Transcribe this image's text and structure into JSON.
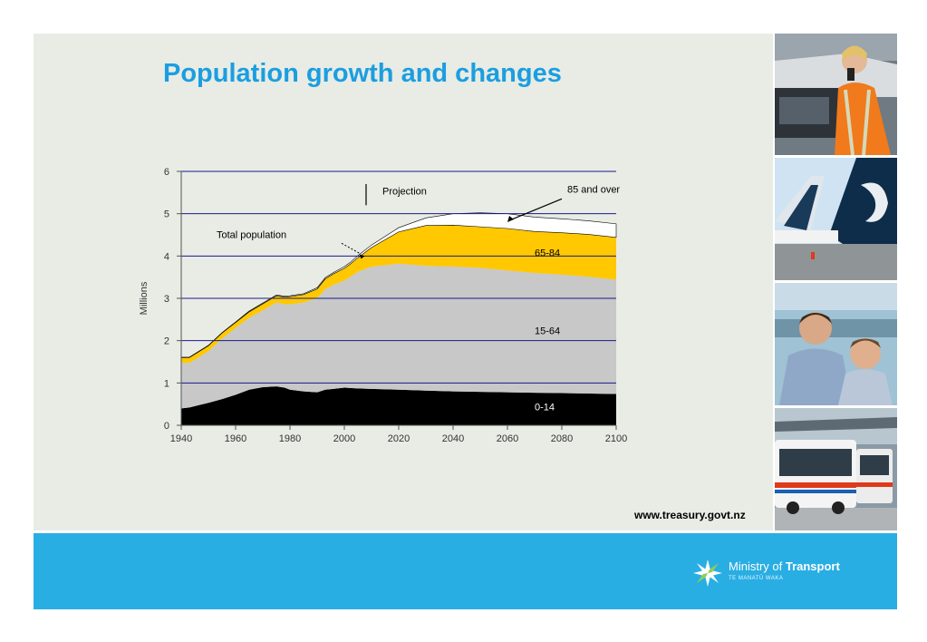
{
  "slide": {
    "title": "Population growth and changes",
    "url": "www.treasury.govt.nz"
  },
  "logo": {
    "name_light": "Ministry of ",
    "name_bold": "Transport",
    "subtitle": "TE MANATŪ WAKA",
    "icon": "fern-star-icon"
  },
  "photos": [
    {
      "icon": "worker-photo"
    },
    {
      "icon": "aircraft-tails-photo"
    },
    {
      "icon": "family-ferry-photo"
    },
    {
      "icon": "bus-photo"
    }
  ],
  "colors": {
    "title": "#1b9ee0",
    "panel": "#e8ece5",
    "footer": "#29aee3",
    "age_0_14": "#000000",
    "age_15_64": "#c8c8c8",
    "age_65_84": "#ffc800",
    "age_85_over": "#ffffff",
    "gridline": "#1a1a8c"
  },
  "chart_data": {
    "type": "area",
    "stacked": true,
    "ylabel": "Millions",
    "ylim": [
      0,
      6
    ],
    "xlim": [
      1940,
      2100
    ],
    "x_ticks": [
      "1940",
      "1960",
      "1980",
      "2000",
      "2020",
      "2040",
      "2060",
      "2080",
      "2100"
    ],
    "y_ticks": [
      "0",
      "1",
      "2",
      "3",
      "4",
      "5",
      "6"
    ],
    "grid": "horizontal",
    "x": [
      1940,
      1943,
      1946,
      1950,
      1955,
      1960,
      1965,
      1970,
      1975,
      1978,
      1980,
      1985,
      1990,
      1993,
      1996,
      2000,
      2002,
      2005,
      2010,
      2020,
      2030,
      2040,
      2050,
      2060,
      2070,
      2080,
      2090,
      2100
    ],
    "series": [
      {
        "name": "0-14",
        "values": [
          0.4,
          0.42,
          0.47,
          0.53,
          0.62,
          0.72,
          0.84,
          0.9,
          0.92,
          0.89,
          0.84,
          0.8,
          0.78,
          0.84,
          0.86,
          0.89,
          0.88,
          0.87,
          0.86,
          0.84,
          0.82,
          0.8,
          0.79,
          0.78,
          0.77,
          0.76,
          0.75,
          0.74
        ]
      },
      {
        "name": "15-64",
        "values": [
          1.08,
          1.05,
          1.12,
          1.22,
          1.43,
          1.58,
          1.7,
          1.82,
          1.98,
          1.97,
          2.02,
          2.1,
          2.22,
          2.38,
          2.46,
          2.53,
          2.62,
          2.76,
          2.89,
          2.98,
          2.95,
          2.95,
          2.93,
          2.88,
          2.83,
          2.8,
          2.76,
          2.7
        ]
      },
      {
        "name": "65-84",
        "values": [
          0.12,
          0.13,
          0.13,
          0.13,
          0.13,
          0.13,
          0.14,
          0.15,
          0.16,
          0.17,
          0.18,
          0.19,
          0.22,
          0.24,
          0.26,
          0.29,
          0.3,
          0.33,
          0.45,
          0.75,
          0.95,
          0.98,
          0.97,
          0.99,
          0.98,
          0.99,
          1.0,
          1.0
        ]
      },
      {
        "name": "85 and over",
        "values": [
          0.01,
          0.01,
          0.01,
          0.01,
          0.01,
          0.01,
          0.02,
          0.02,
          0.02,
          0.02,
          0.02,
          0.02,
          0.03,
          0.03,
          0.03,
          0.04,
          0.04,
          0.05,
          0.06,
          0.1,
          0.18,
          0.27,
          0.33,
          0.35,
          0.34,
          0.33,
          0.32,
          0.32
        ]
      }
    ],
    "projection_start": 2008,
    "annotations": {
      "projection": "Projection",
      "total_population": "Total population"
    }
  }
}
